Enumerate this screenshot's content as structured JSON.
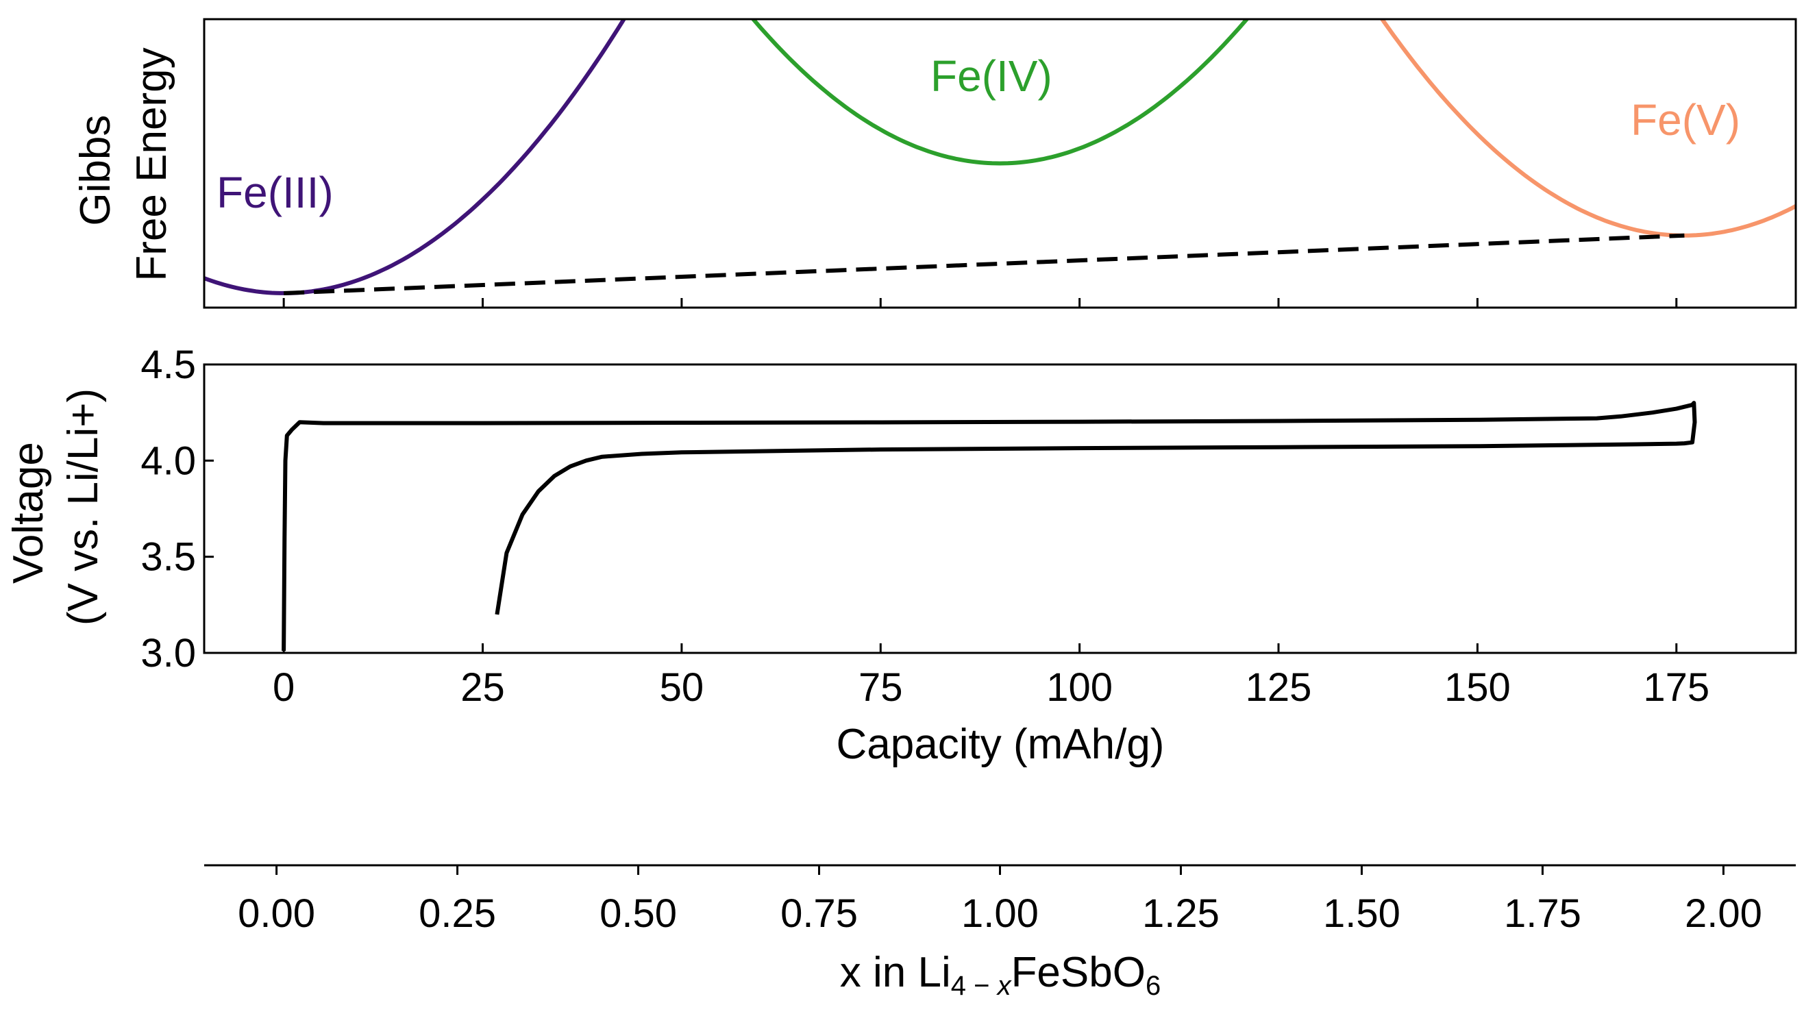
{
  "chart_data": [
    {
      "type": "line",
      "panel": "gibbs-free-energy",
      "ylabel_lines": [
        "Gibbs",
        "Free Energy"
      ],
      "xlim": [
        -10,
        190
      ],
      "y_ticks_shown": false,
      "x_tick_labels_shown": false,
      "x_ticks": [
        0,
        25,
        50,
        75,
        100,
        125,
        150,
        175
      ],
      "curves": [
        {
          "label": "Fe(III)",
          "color": "#3f1477",
          "shape": "parabola",
          "minimum_x": 0,
          "minimum_level": 0.05,
          "curvature": 0.00052
        },
        {
          "label": "Fe(IV)",
          "color": "#2ca02c",
          "shape": "parabola",
          "minimum_x": 90,
          "minimum_level": 0.5,
          "curvature": 0.00052
        },
        {
          "label": "Fe(V)",
          "color": "#f7956a",
          "shape": "parabola",
          "minimum_x": 176,
          "minimum_level": 0.25,
          "curvature": 0.00052
        }
      ],
      "common_tangent": {
        "style": "dashed",
        "color": "#000000",
        "from_x": 0,
        "to_x": 176
      }
    },
    {
      "type": "line",
      "panel": "voltage",
      "xlabel": "Capacity (mAh/g)",
      "ylabel_lines": [
        "Voltage",
        "(V vs. Li/Li+)"
      ],
      "xlim": [
        -10,
        190
      ],
      "ylim": [
        3.0,
        4.5
      ],
      "x_ticks": [
        0,
        25,
        50,
        75,
        100,
        125,
        150,
        175
      ],
      "x_tick_labels": [
        "0",
        "25",
        "50",
        "75",
        "100",
        "125",
        "150",
        "175"
      ],
      "y_ticks": [
        3.0,
        3.5,
        4.0,
        4.5
      ],
      "y_tick_labels": [
        "3.0",
        "3.5",
        "4.0",
        "4.5"
      ],
      "series": [
        {
          "color": "#000000",
          "x": [
            0,
            0.1,
            0.2,
            0.4,
            1,
            2,
            5,
            25,
            50,
            75,
            100,
            125,
            150,
            165,
            168,
            172,
            175,
            177,
            177.2,
            177.3,
            177,
            176,
            175,
            170,
            160,
            150,
            125,
            100,
            75,
            50,
            45,
            40,
            38,
            36,
            34,
            32,
            30,
            28,
            26.8
          ],
          "y": [
            3.01,
            3.6,
            4.0,
            4.13,
            4.16,
            4.2,
            4.195,
            4.195,
            4.197,
            4.199,
            4.202,
            4.206,
            4.212,
            4.22,
            4.23,
            4.25,
            4.27,
            4.29,
            4.3,
            4.2,
            4.095,
            4.09,
            4.088,
            4.085,
            4.08,
            4.075,
            4.07,
            4.065,
            4.058,
            4.043,
            4.035,
            4.02,
            4.0,
            3.97,
            3.92,
            3.84,
            3.72,
            3.52,
            3.2
          ]
        }
      ]
    },
    {
      "type": "axis",
      "panel": "composition-axis",
      "xlabel": "x in Li4−xFeSbO6",
      "xlim": [
        -0.1,
        2.1
      ],
      "x_ticks": [
        0.0,
        0.25,
        0.5,
        0.75,
        1.0,
        1.25,
        1.5,
        1.75,
        2.0
      ],
      "x_tick_labels": [
        "0.00",
        "0.25",
        "0.50",
        "0.75",
        "1.00",
        "1.25",
        "1.50",
        "1.75",
        "2.00"
      ]
    }
  ]
}
